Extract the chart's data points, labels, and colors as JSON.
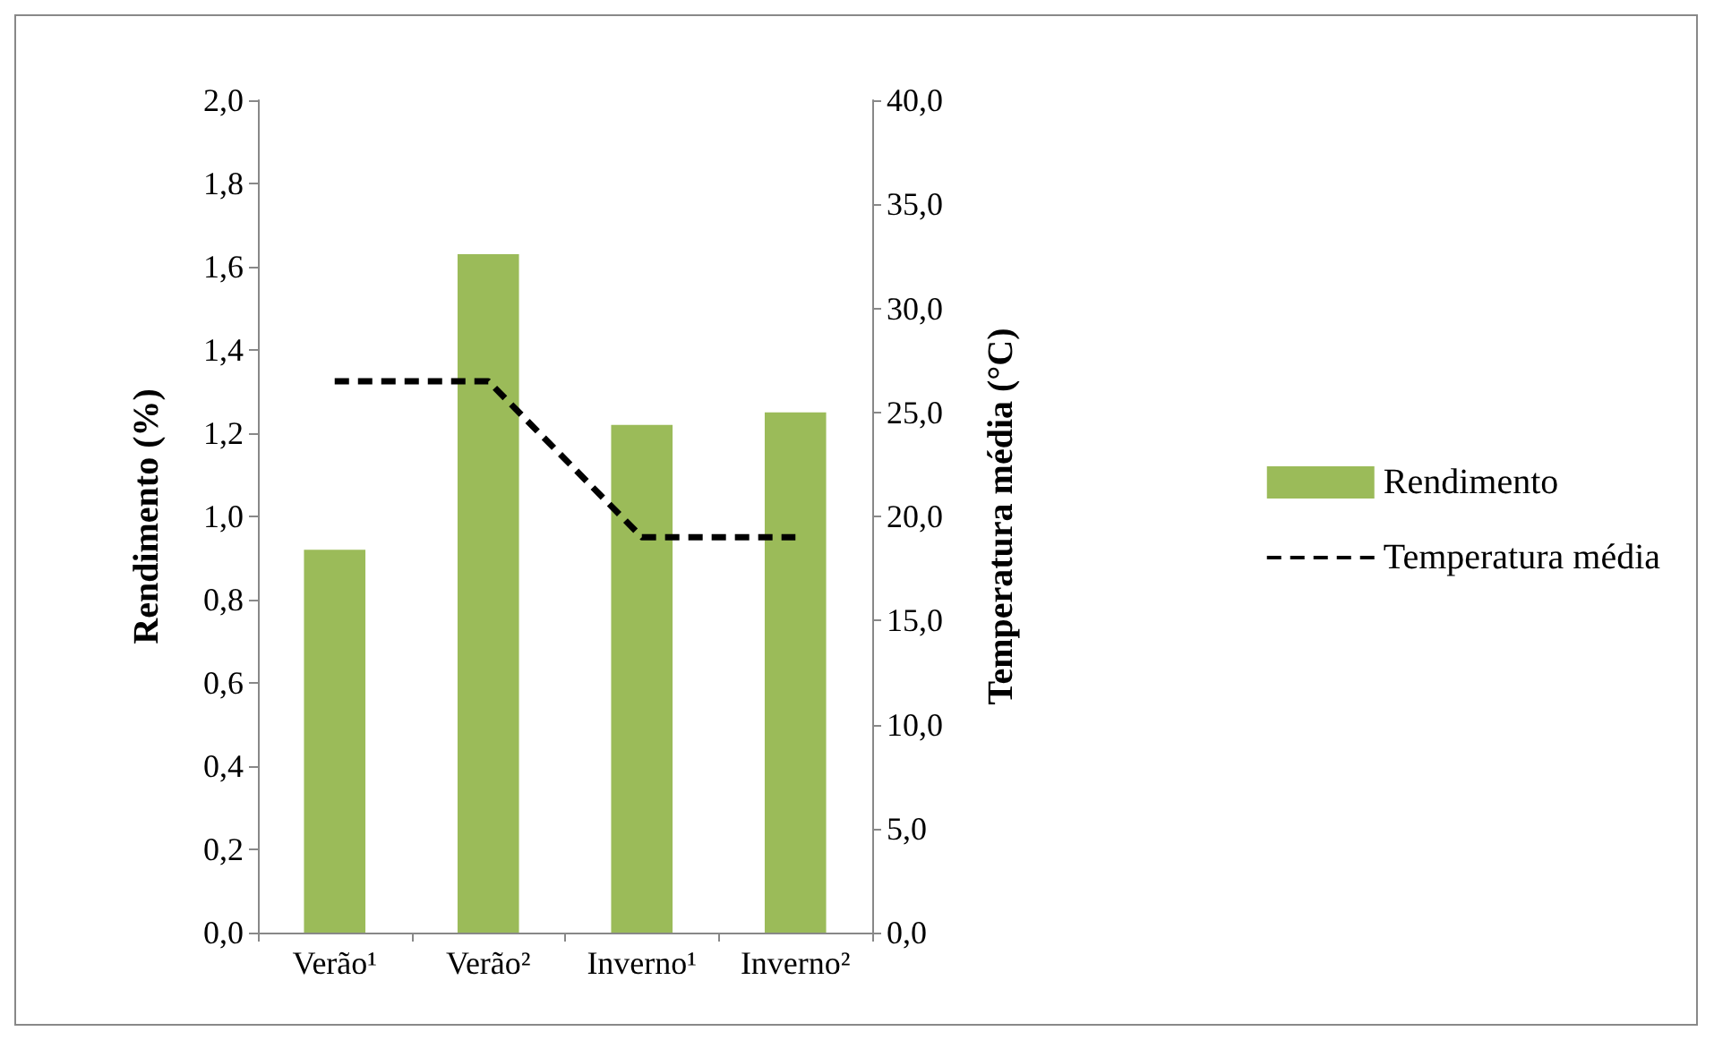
{
  "chart_data": {
    "type": "bar",
    "categories": [
      "Verão¹",
      "Verão²",
      "Inverno¹",
      "Inverno²"
    ],
    "series": [
      {
        "name": "Rendimento",
        "color": "#9bbb59",
        "values": [
          0.92,
          1.63,
          1.22,
          1.25
        ]
      },
      {
        "name": "Temperatura média",
        "type": "line",
        "axis": "y2",
        "color": "#000000",
        "line_style": "dashed",
        "marker": "none",
        "values": [
          26.5,
          26.5,
          19.0,
          19.0
        ]
      }
    ],
    "ylabel": "Rendimento (%)",
    "y2label": "Temperatura média (°C)",
    "ylim": [
      0,
      2
    ],
    "yticks": [
      {
        "value": 0,
        "label": "0,0"
      },
      {
        "value": 0.2,
        "label": "0,2"
      },
      {
        "value": 0.4,
        "label": "0,4"
      },
      {
        "value": 0.6,
        "label": "0,6"
      },
      {
        "value": 0.8,
        "label": "0,8"
      },
      {
        "value": 1,
        "label": "1,0"
      },
      {
        "value": 1.2,
        "label": "1,2"
      },
      {
        "value": 1.4,
        "label": "1,4"
      },
      {
        "value": 1.6,
        "label": "1,6"
      },
      {
        "value": 1.8,
        "label": "1,8"
      },
      {
        "value": 2,
        "label": "2,0"
      }
    ],
    "y2lim": [
      0,
      40
    ],
    "y2ticks": [
      {
        "value": 0,
        "label": "0,0"
      },
      {
        "value": 5,
        "label": "5,0"
      },
      {
        "value": 10,
        "label": "10,0"
      },
      {
        "value": 15,
        "label": "15,0"
      },
      {
        "value": 20,
        "label": "20,0"
      },
      {
        "value": 25,
        "label": "25,0"
      },
      {
        "value": 30,
        "label": "30,0"
      },
      {
        "value": 35,
        "label": "35,0"
      },
      {
        "value": 40,
        "label": "40,0"
      }
    ],
    "grid": false,
    "legend": "right"
  }
}
